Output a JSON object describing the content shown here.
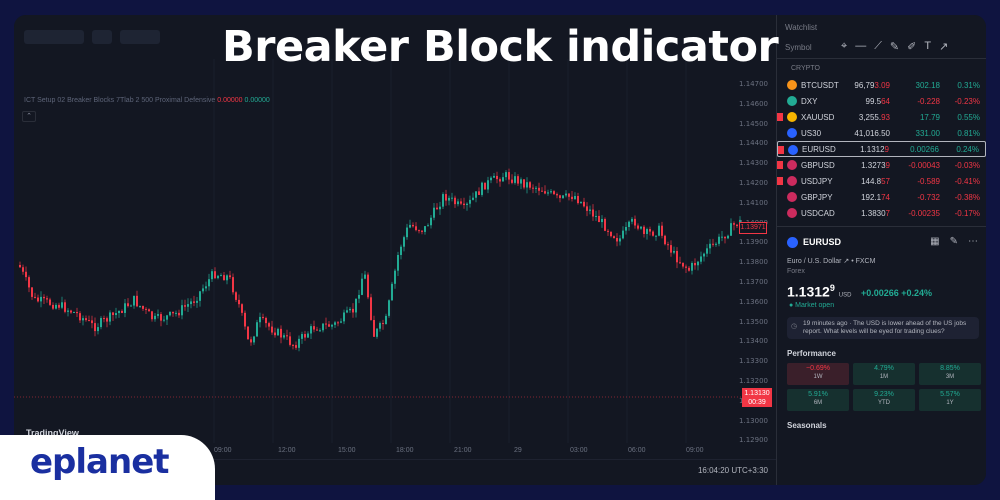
{
  "headline": "Breaker Block indicator",
  "brand": "eplanet",
  "chart": {
    "indicator_line": "ICT Setup 02 Breaker Blocks 7Tlab 2 500 Proximal Defensive",
    "indicator_val1": "0.00000",
    "indicator_val2": "0.00000",
    "collapse_glyph": "⌃",
    "tv_logo": "TradingView",
    "price_ticks": [
      "1.14700",
      "1.14600",
      "1.14500",
      "1.14400",
      "1.14300",
      "1.14200",
      "1.14100",
      "1.14000",
      "1.13900",
      "1.13800",
      "1.13700",
      "1.13600",
      "1.13500",
      "1.13400",
      "1.13300",
      "1.13200",
      "1.13100",
      "1.13000",
      "1.12900"
    ],
    "current_box": "1.13971",
    "last_price": "1.13130",
    "countdown": "00:39",
    "time_ticks": [
      "09:00",
      "12:00",
      "15:00",
      "18:00",
      "21:00",
      "29",
      "03:00",
      "06:00",
      "09:00"
    ],
    "clock": "16:04:20 UTC+3:30",
    "colors": {
      "up": "#22ab94",
      "down": "#f23645"
    }
  },
  "panel": {
    "title": "Watchlist",
    "symbol_label": "Symbol",
    "section": "CRYPTO",
    "watchlist": [
      {
        "symbol": "BTCUSDT",
        "last": "96,79",
        "last_sup": "3.09",
        "chg": "302.18",
        "pct": "0.31%",
        "dir": "pos",
        "icon_color": "#f7931a",
        "flag": false
      },
      {
        "symbol": "DXY",
        "last": "99.5",
        "last_sup": "64",
        "chg": "-0.228",
        "pct": "-0.23%",
        "dir": "neg",
        "icon_color": "#22ab94",
        "flag": false
      },
      {
        "symbol": "XAUUSD",
        "last": "3,255.",
        "last_sup": "93",
        "chg": "17.79",
        "pct": "0.55%",
        "dir": "pos",
        "icon_color": "#f7b500",
        "flag": true
      },
      {
        "symbol": "US30",
        "last": "41,016.50",
        "last_sup": "",
        "chg": "331.00",
        "pct": "0.81%",
        "dir": "pos",
        "icon_color": "#2962ff",
        "flag": false
      },
      {
        "symbol": "EURUSD",
        "last": "1.1312",
        "last_sup": "9",
        "chg": "0.00266",
        "pct": "0.24%",
        "dir": "pos",
        "icon_color": "#2962ff",
        "flag": true,
        "selected": true
      },
      {
        "symbol": "GBPUSD",
        "last": "1.3273",
        "last_sup": "9",
        "chg": "-0.00043",
        "pct": "-0.03%",
        "dir": "neg",
        "icon_color": "#cc2b5e",
        "flag": true
      },
      {
        "symbol": "USDJPY",
        "last": "144.8",
        "last_sup": "57",
        "chg": "-0.589",
        "pct": "-0.41%",
        "dir": "neg",
        "icon_color": "#cc2b5e",
        "flag": true
      },
      {
        "symbol": "GBPJPY",
        "last": "192.1",
        "last_sup": "74",
        "chg": "-0.732",
        "pct": "-0.38%",
        "dir": "neg",
        "icon_color": "#cc2b5e",
        "flag": false
      },
      {
        "symbol": "USDCAD",
        "last": "1.3830",
        "last_sup": "7",
        "chg": "-0.00235",
        "pct": "-0.17%",
        "dir": "neg",
        "icon_color": "#cc2b5e",
        "flag": false
      }
    ],
    "detail": {
      "symbol": "EURUSD",
      "description": "Euro / U.S. Dollar ↗ • FXCM",
      "type": "Forex",
      "price": "1.1312",
      "price_sup": "9",
      "unit": "USD",
      "change": "+0.00266 +0.24%",
      "status": "● Market open",
      "news": "19 minutes ago · The USD is lower ahead of the US jobs report. What levels will be eyed for trading clues?",
      "performance_label": "Performance",
      "seasonals_label": "Seasonals",
      "performance": [
        {
          "value": "−0.69%",
          "label": "1W",
          "dir": "neg"
        },
        {
          "value": "4.79%",
          "label": "1M",
          "dir": "pos"
        },
        {
          "value": "8.85%",
          "label": "3M",
          "dir": "pos"
        },
        {
          "value": "5.91%",
          "label": "6M",
          "dir": "pos"
        },
        {
          "value": "9.23%",
          "label": "YTD",
          "dir": "pos"
        },
        {
          "value": "5.57%",
          "label": "1Y",
          "dir": "pos"
        }
      ]
    }
  }
}
